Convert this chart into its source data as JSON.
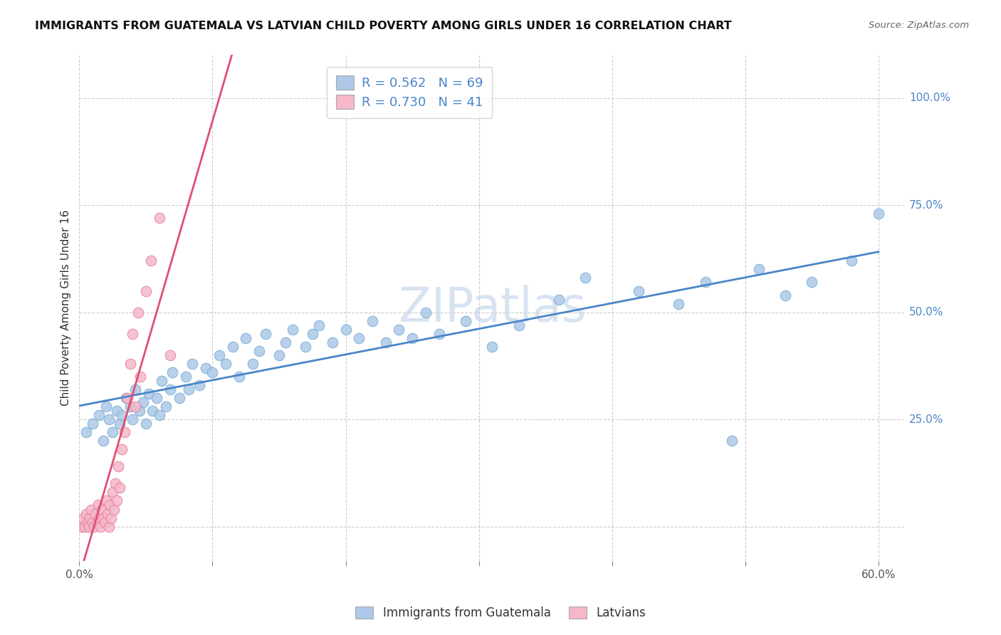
{
  "title": "IMMIGRANTS FROM GUATEMALA VS LATVIAN CHILD POVERTY AMONG GIRLS UNDER 16 CORRELATION CHART",
  "source": "Source: ZipAtlas.com",
  "ylabel": "Child Poverty Among Girls Under 16",
  "xlim": [
    0.0,
    0.62
  ],
  "ylim": [
    -0.08,
    1.1
  ],
  "ytick_positions": [
    0.0,
    0.25,
    0.5,
    0.75,
    1.0
  ],
  "yticklabels": [
    "",
    "25.0%",
    "50.0%",
    "75.0%",
    "100.0%"
  ],
  "xtick_positions": [
    0.0,
    0.1,
    0.2,
    0.3,
    0.4,
    0.5,
    0.6
  ],
  "xticklabels": [
    "0.0%",
    "",
    "",
    "",
    "",
    "",
    "60.0%"
  ],
  "blue_R": 0.562,
  "blue_N": 69,
  "pink_R": 0.73,
  "pink_N": 41,
  "blue_color": "#adc8e8",
  "blue_edge": "#7aafd4",
  "pink_color": "#f4b8c8",
  "pink_edge": "#e87fa0",
  "blue_line_color": "#4a86c8",
  "pink_line_color": "#e05070",
  "watermark": "ZIPatlas",
  "watermark_color": "#c8d8ec",
  "legend_text_color": "#4a86c8",
  "blue_scatter_x": [
    0.005,
    0.01,
    0.015,
    0.018,
    0.02,
    0.022,
    0.025,
    0.028,
    0.03,
    0.032,
    0.035,
    0.038,
    0.04,
    0.042,
    0.045,
    0.048,
    0.05,
    0.052,
    0.055,
    0.058,
    0.06,
    0.062,
    0.065,
    0.068,
    0.07,
    0.075,
    0.08,
    0.082,
    0.085,
    0.09,
    0.095,
    0.1,
    0.105,
    0.11,
    0.115,
    0.12,
    0.125,
    0.13,
    0.135,
    0.14,
    0.15,
    0.155,
    0.16,
    0.17,
    0.175,
    0.18,
    0.19,
    0.2,
    0.21,
    0.22,
    0.23,
    0.24,
    0.25,
    0.26,
    0.27,
    0.29,
    0.31,
    0.33,
    0.36,
    0.38,
    0.42,
    0.45,
    0.47,
    0.49,
    0.51,
    0.53,
    0.55,
    0.58,
    0.6
  ],
  "blue_scatter_y": [
    0.22,
    0.24,
    0.26,
    0.2,
    0.28,
    0.25,
    0.22,
    0.27,
    0.24,
    0.26,
    0.3,
    0.28,
    0.25,
    0.32,
    0.27,
    0.29,
    0.24,
    0.31,
    0.27,
    0.3,
    0.26,
    0.34,
    0.28,
    0.32,
    0.36,
    0.3,
    0.35,
    0.32,
    0.38,
    0.33,
    0.37,
    0.36,
    0.4,
    0.38,
    0.42,
    0.35,
    0.44,
    0.38,
    0.41,
    0.45,
    0.4,
    0.43,
    0.46,
    0.42,
    0.45,
    0.47,
    0.43,
    0.46,
    0.44,
    0.48,
    0.43,
    0.46,
    0.44,
    0.5,
    0.45,
    0.48,
    0.42,
    0.47,
    0.53,
    0.58,
    0.55,
    0.52,
    0.57,
    0.2,
    0.6,
    0.54,
    0.57,
    0.62,
    0.73
  ],
  "pink_scatter_x": [
    0.002,
    0.003,
    0.004,
    0.005,
    0.006,
    0.007,
    0.008,
    0.009,
    0.01,
    0.011,
    0.012,
    0.013,
    0.014,
    0.015,
    0.016,
    0.017,
    0.018,
    0.019,
    0.02,
    0.021,
    0.022,
    0.023,
    0.024,
    0.025,
    0.026,
    0.027,
    0.028,
    0.029,
    0.03,
    0.032,
    0.034,
    0.036,
    0.038,
    0.04,
    0.042,
    0.044,
    0.046,
    0.05,
    0.054,
    0.06,
    0.068
  ],
  "pink_scatter_y": [
    0.0,
    0.02,
    0.0,
    0.03,
    0.01,
    0.0,
    0.02,
    0.04,
    0.01,
    0.0,
    0.03,
    0.01,
    0.05,
    0.02,
    0.0,
    0.04,
    0.02,
    0.01,
    0.06,
    0.03,
    0.0,
    0.05,
    0.02,
    0.08,
    0.04,
    0.1,
    0.06,
    0.14,
    0.09,
    0.18,
    0.22,
    0.3,
    0.38,
    0.45,
    0.28,
    0.5,
    0.35,
    0.55,
    0.62,
    0.72,
    0.4
  ],
  "pink_line_x0": 0.0,
  "pink_line_x1": 0.075,
  "pink_line_y_top": 1.1
}
